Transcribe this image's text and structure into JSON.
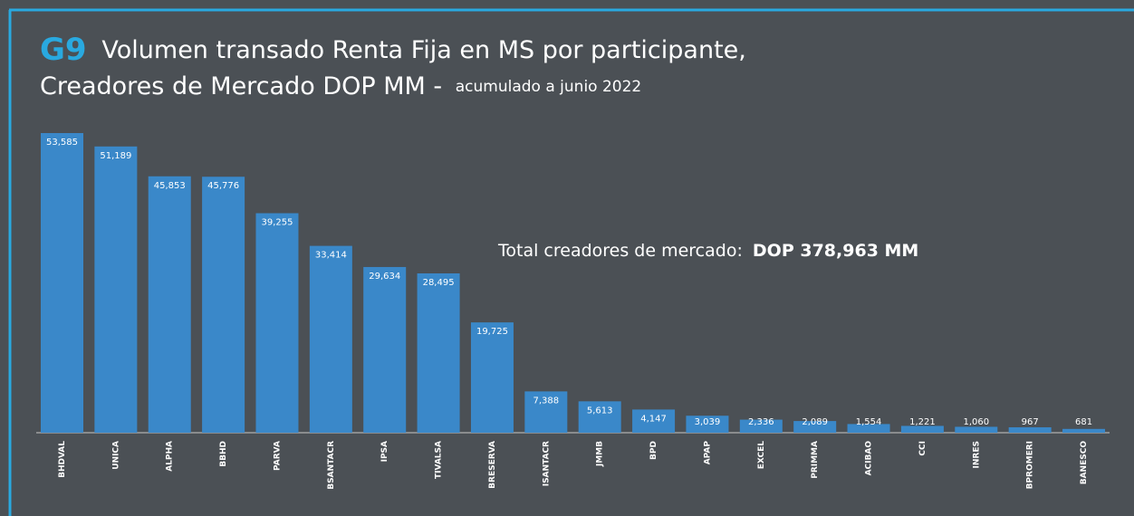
{
  "chart_data": {
    "type": "bar",
    "title_prefix": "G9",
    "title": "Volumen transado Renta Fija en MS por participante,",
    "title_line2": "Creadores de Mercado DOP MM -",
    "subtitle": "acumulado a junio 2022",
    "annotation": {
      "label": "Total creadores de mercado:",
      "value": "DOP 378,963 MM"
    },
    "categories": [
      "BHDVAL",
      "UNICA",
      "ALPHA",
      "BBHD",
      "PARVA",
      "BSANTACR",
      "IPSA",
      "TIVALSA",
      "BRESERVA",
      "ISANTACR",
      "JMMB",
      "BPD",
      "APAP",
      "EXCEL",
      "PRIMMA",
      "ACIBAO",
      "CCI",
      "INRES",
      "BPROMERI",
      "BANESCO"
    ],
    "values": [
      53585,
      51189,
      45853,
      45776,
      39255,
      33414,
      29634,
      28495,
      19725,
      7388,
      5613,
      4147,
      3039,
      2336,
      2089,
      1554,
      1221,
      1060,
      967,
      681
    ],
    "value_labels": [
      "53,585",
      "51,189",
      "45,853",
      "45,776",
      "39,255",
      "33,414",
      "29,634",
      "28,495",
      "19,725",
      "7,388",
      "5,613",
      "4,147",
      "3,039",
      "2,336",
      "2,089",
      "1,554",
      "1,221",
      "1,060",
      "967",
      "681"
    ],
    "color": "#3a88c9"
  }
}
